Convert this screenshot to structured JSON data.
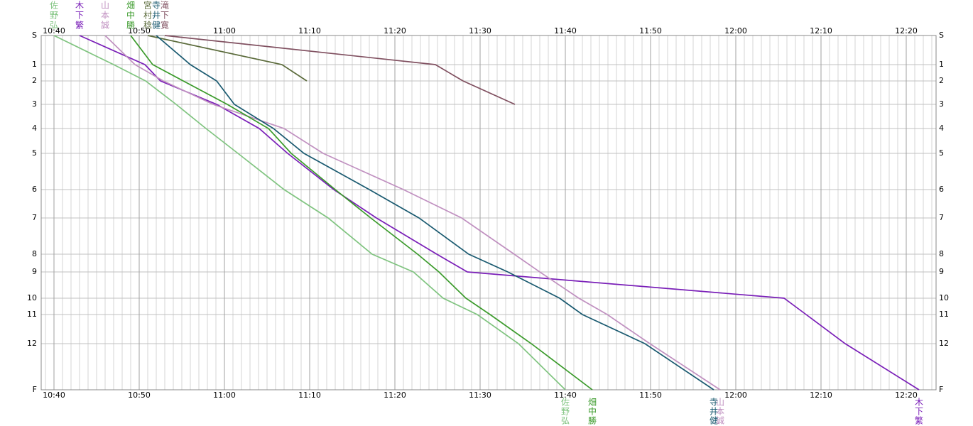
{
  "chart_data": {
    "type": "line",
    "categories": [
      "S",
      "1",
      "2",
      "3",
      "4",
      "5",
      "6",
      "7",
      "8",
      "9",
      "10",
      "11",
      "12",
      "F"
    ],
    "xlim": [
      "10:38:30",
      "12:23:30"
    ],
    "xticks": [
      "10:40",
      "10:50",
      "11:00",
      "11:10",
      "11:20",
      "11:30",
      "11:40",
      "11:50",
      "12:00",
      "12:10",
      "12:20"
    ],
    "grid": true,
    "series": [
      {
        "name": [
          "佐",
          "野",
          "弘"
        ],
        "color": "#80c480",
        "values": [
          "10:40:00",
          "10:47:00",
          "10:50:45",
          "10:54:20",
          "10:57:50",
          "11:01:35",
          "11:07:00",
          "11:12:10",
          "11:17:20",
          "11:22:10",
          "11:25:40",
          "11:29:40",
          "11:34:30",
          "11:40:00"
        ]
      },
      {
        "name": [
          "木",
          "下",
          "繁"
        ],
        "color": "#7a1fb8",
        "values": [
          "10:43:00",
          "10:50:40",
          "10:52:30",
          "10:59:05",
          "11:04:05",
          "11:07:25",
          "11:12:50",
          "11:17:50",
          "11:24:55",
          "11:28:30",
          "12:05:40",
          "12:08:15",
          "12:12:50",
          "12:21:30"
        ]
      },
      {
        "name": [
          "山",
          "本",
          "誠"
        ],
        "color": "#c090c0",
        "values": [
          "10:46:00",
          "10:49:30",
          "10:52:50",
          "10:58:40",
          "11:07:00",
          "11:11:35",
          "11:21:00",
          "11:27:50",
          "11:34:00",
          "11:37:00",
          "11:41:35",
          "11:44:55",
          "11:49:55",
          "11:58:10"
        ]
      },
      {
        "name": [
          "畑",
          "中",
          "勝"
        ],
        "color": "#3a9a2a",
        "values": [
          "10:49:00",
          "10:51:35",
          "10:55:10",
          "11:00:20",
          "11:05:10",
          "11:07:50",
          "11:13:00",
          "11:17:10",
          "11:22:40",
          "11:25:10",
          "11:28:20",
          "11:31:10",
          "11:36:00",
          "11:43:10"
        ]
      },
      {
        "name": [
          "宮",
          "村",
          "稔"
        ],
        "color": "#5a6a3a",
        "values": [
          "10:51:00",
          "11:06:45",
          "11:09:40",
          null,
          null,
          null,
          null,
          null,
          null,
          null,
          null,
          null,
          null,
          null
        ]
      },
      {
        "name": [
          "寺",
          "井",
          "健"
        ],
        "color": "#1a5a70",
        "values": [
          "10:52:00",
          "10:56:00",
          "10:59:05",
          "11:01:10",
          "11:05:45",
          "11:09:20",
          "11:17:00",
          "11:22:50",
          "11:28:40",
          "11:33:15",
          "11:39:20",
          "11:42:00",
          "11:49:20",
          "11:57:25"
        ]
      },
      {
        "name": [
          "滝",
          "下",
          "寛"
        ],
        "color": "#805060",
        "values": [
          "10:53:00",
          "11:24:45",
          "11:28:00",
          "11:34:05",
          null,
          null,
          null,
          null,
          null,
          null,
          null,
          null,
          null,
          null
        ]
      }
    ]
  }
}
